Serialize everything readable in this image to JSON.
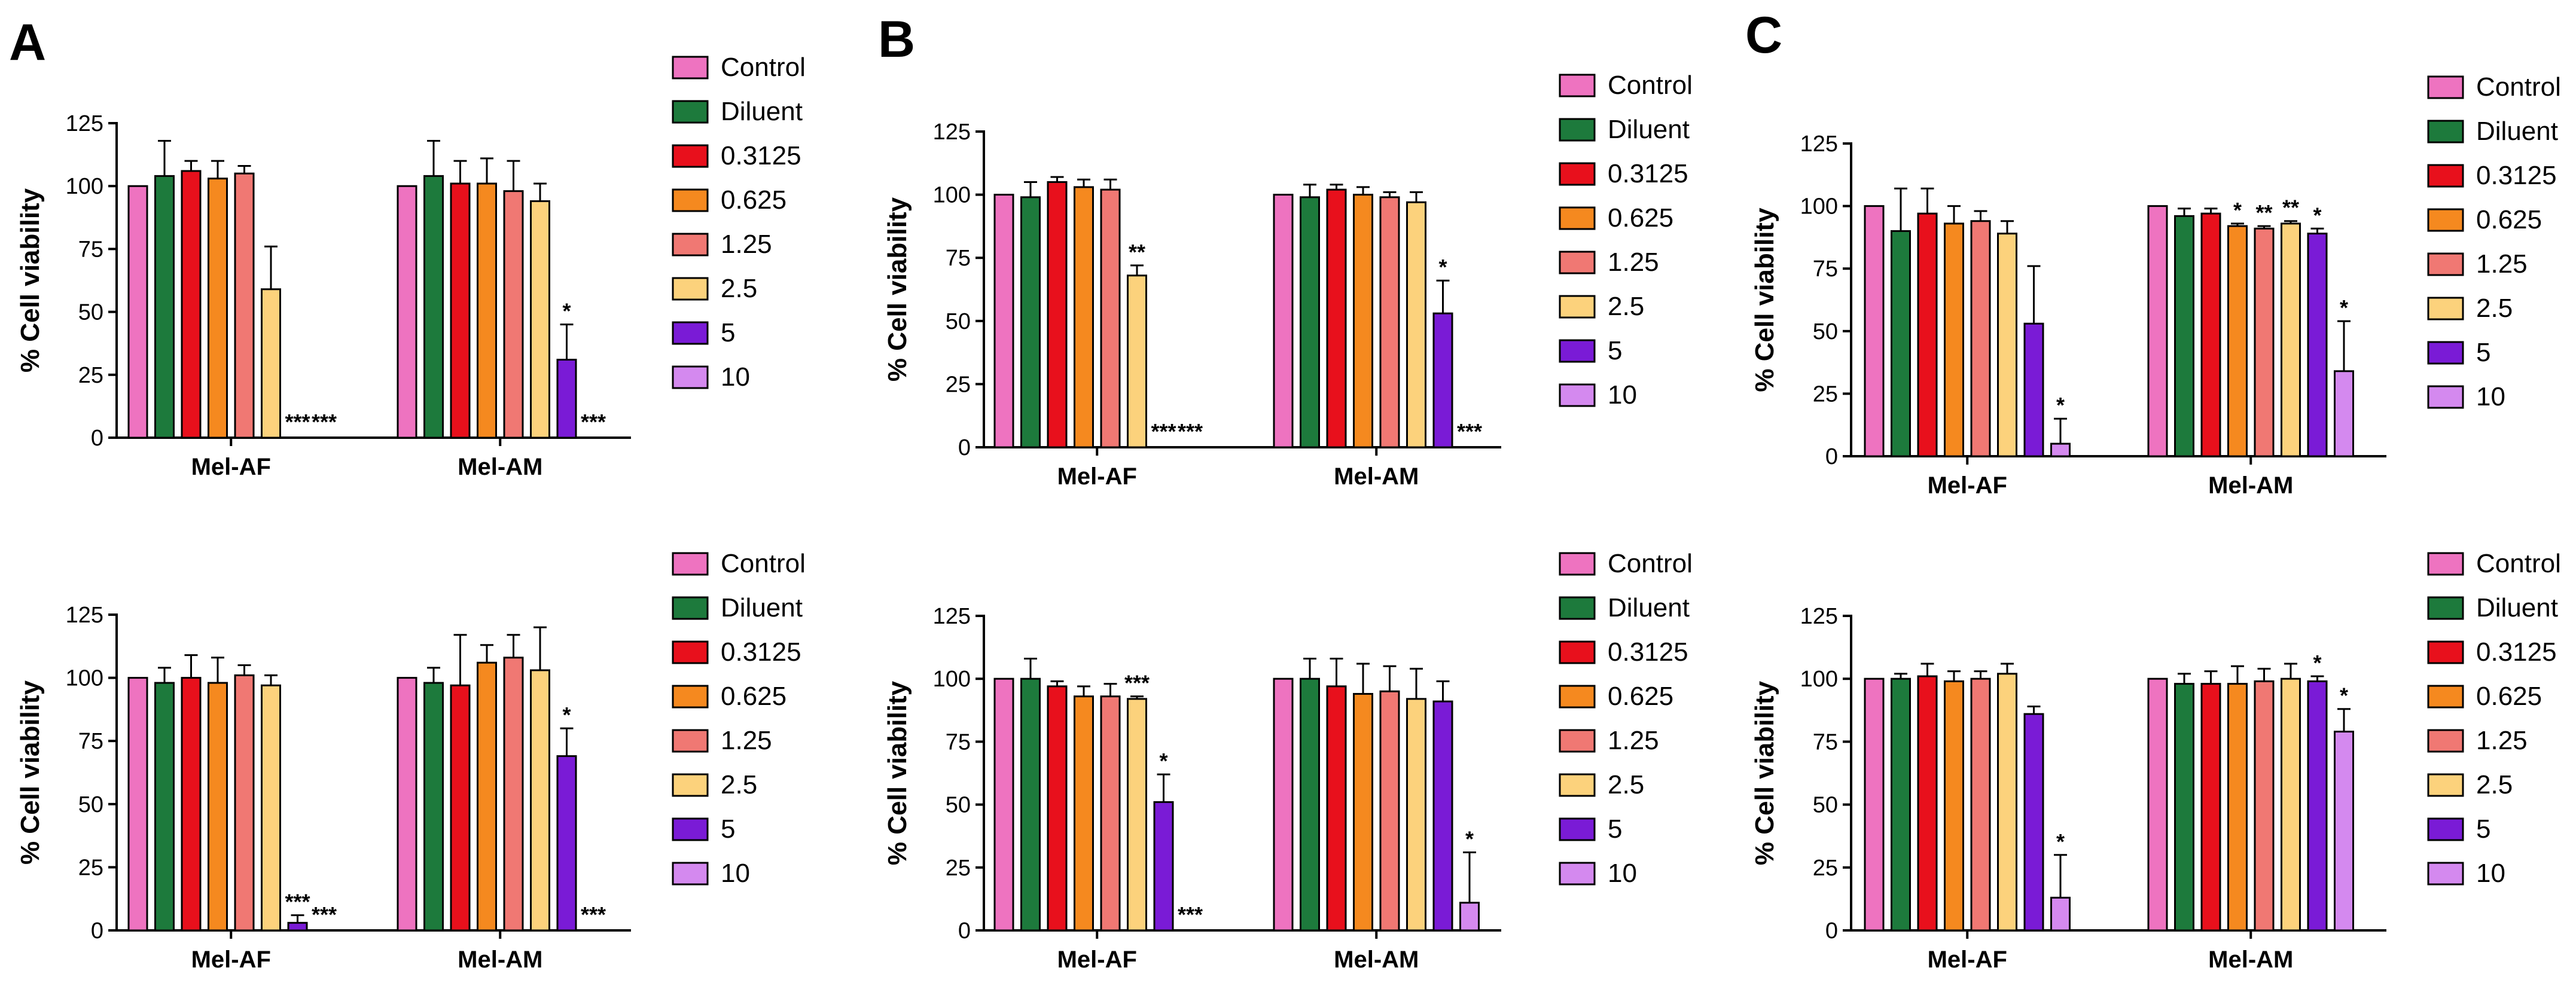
{
  "colors": {
    "Control": "#ee73c0",
    "Diluent": "#1d7a3c",
    "0.3125": "#e8101c",
    "0.625": "#f5891f",
    "1.25": "#f07873",
    "2.5": "#fcd27c",
    "5": "#7a1bd6",
    "10": "#d489ef"
  },
  "chart_data": [
    {
      "panel": "A",
      "type": "bar",
      "ylabel": "% Cell viability",
      "ylim": [
        0,
        125
      ],
      "yticks": [
        0,
        25,
        50,
        75,
        100,
        125
      ],
      "categories": [
        "Mel-AF",
        "Mel-AM"
      ],
      "series": [
        {
          "name": "Control",
          "values": [
            100,
            100
          ],
          "errors": [
            0,
            0
          ],
          "sig": [
            "",
            ""
          ]
        },
        {
          "name": "Diluent",
          "values": [
            104,
            104
          ],
          "errors": [
            14,
            14
          ],
          "sig": [
            "",
            ""
          ]
        },
        {
          "name": "0.3125",
          "values": [
            106,
            101
          ],
          "errors": [
            4,
            9
          ],
          "sig": [
            "",
            ""
          ]
        },
        {
          "name": "0.625",
          "values": [
            103,
            101
          ],
          "errors": [
            7,
            10
          ],
          "sig": [
            "",
            ""
          ]
        },
        {
          "name": "1.25",
          "values": [
            105,
            98
          ],
          "errors": [
            3,
            12
          ],
          "sig": [
            "",
            ""
          ]
        },
        {
          "name": "2.5",
          "values": [
            59,
            94
          ],
          "errors": [
            17,
            7
          ],
          "sig": [
            "",
            ""
          ]
        },
        {
          "name": "5",
          "values": [
            0,
            31
          ],
          "errors": [
            0,
            14
          ],
          "sig": [
            "***",
            "*"
          ]
        },
        {
          "name": "10",
          "values": [
            0,
            0
          ],
          "errors": [
            0,
            0
          ],
          "sig": [
            "***",
            "***"
          ]
        }
      ]
    },
    {
      "panel": "B",
      "type": "bar",
      "ylabel": "% Cell viability",
      "ylim": [
        0,
        125
      ],
      "yticks": [
        0,
        25,
        50,
        75,
        100,
        125
      ],
      "categories": [
        "Mel-AF",
        "Mel-AM"
      ],
      "series": [
        {
          "name": "Control",
          "values": [
            100,
            100
          ],
          "errors": [
            0,
            0
          ],
          "sig": [
            "",
            ""
          ]
        },
        {
          "name": "Diluent",
          "values": [
            99,
            99
          ],
          "errors": [
            6,
            5
          ],
          "sig": [
            "",
            ""
          ]
        },
        {
          "name": "0.3125",
          "values": [
            105,
            102
          ],
          "errors": [
            2,
            2
          ],
          "sig": [
            "",
            ""
          ]
        },
        {
          "name": "0.625",
          "values": [
            103,
            100
          ],
          "errors": [
            3,
            3
          ],
          "sig": [
            "",
            ""
          ]
        },
        {
          "name": "1.25",
          "values": [
            102,
            99
          ],
          "errors": [
            4,
            2
          ],
          "sig": [
            "",
            ""
          ]
        },
        {
          "name": "2.5",
          "values": [
            68,
            97
          ],
          "errors": [
            4,
            4
          ],
          "sig": [
            "**",
            ""
          ]
        },
        {
          "name": "5",
          "values": [
            0,
            53
          ],
          "errors": [
            0,
            13
          ],
          "sig": [
            "***",
            "*"
          ]
        },
        {
          "name": "10",
          "values": [
            0,
            0
          ],
          "errors": [
            0,
            0
          ],
          "sig": [
            "***",
            "***"
          ]
        }
      ]
    },
    {
      "panel": "C",
      "type": "bar",
      "ylabel": "% Cell viability",
      "ylim": [
        0,
        125
      ],
      "yticks": [
        0,
        25,
        50,
        75,
        100,
        125
      ],
      "categories": [
        "Mel-AF",
        "Mel-AM"
      ],
      "series": [
        {
          "name": "Control",
          "values": [
            100,
            100
          ],
          "errors": [
            0,
            0
          ],
          "sig": [
            "",
            ""
          ]
        },
        {
          "name": "Diluent",
          "values": [
            90,
            96
          ],
          "errors": [
            17,
            3
          ],
          "sig": [
            "",
            ""
          ]
        },
        {
          "name": "0.3125",
          "values": [
            97,
            97
          ],
          "errors": [
            10,
            2
          ],
          "sig": [
            "",
            ""
          ]
        },
        {
          "name": "0.625",
          "values": [
            93,
            92
          ],
          "errors": [
            7,
            1
          ],
          "sig": [
            "",
            "*"
          ]
        },
        {
          "name": "1.25",
          "values": [
            94,
            91
          ],
          "errors": [
            4,
            1
          ],
          "sig": [
            "",
            "**"
          ]
        },
        {
          "name": "2.5",
          "values": [
            89,
            93
          ],
          "errors": [
            5,
            1
          ],
          "sig": [
            "",
            "**"
          ]
        },
        {
          "name": "5",
          "values": [
            53,
            89
          ],
          "errors": [
            23,
            2
          ],
          "sig": [
            "",
            "*"
          ]
        },
        {
          "name": "10",
          "values": [
            5,
            34
          ],
          "errors": [
            10,
            20
          ],
          "sig": [
            "*",
            "*"
          ]
        }
      ]
    },
    {
      "panel": "A",
      "type": "bar",
      "ylabel": "% Cell viability",
      "ylim": [
        0,
        125
      ],
      "yticks": [
        0,
        25,
        50,
        75,
        100,
        125
      ],
      "categories": [
        "Mel-AF",
        "Mel-AM"
      ],
      "series": [
        {
          "name": "Control",
          "values": [
            100,
            100
          ],
          "errors": [
            0,
            0
          ],
          "sig": [
            "",
            ""
          ]
        },
        {
          "name": "Diluent",
          "values": [
            98,
            98
          ],
          "errors": [
            6,
            6
          ],
          "sig": [
            "",
            ""
          ]
        },
        {
          "name": "0.3125",
          "values": [
            100,
            97
          ],
          "errors": [
            9,
            20
          ],
          "sig": [
            "",
            ""
          ]
        },
        {
          "name": "0.625",
          "values": [
            98,
            106
          ],
          "errors": [
            10,
            7
          ],
          "sig": [
            "",
            ""
          ]
        },
        {
          "name": "1.25",
          "values": [
            101,
            108
          ],
          "errors": [
            4,
            9
          ],
          "sig": [
            "",
            ""
          ]
        },
        {
          "name": "2.5",
          "values": [
            97,
            103
          ],
          "errors": [
            4,
            17
          ],
          "sig": [
            "",
            ""
          ]
        },
        {
          "name": "5",
          "values": [
            3,
            69
          ],
          "errors": [
            3,
            11
          ],
          "sig": [
            "***",
            "*"
          ]
        },
        {
          "name": "10",
          "values": [
            0,
            0
          ],
          "errors": [
            0,
            0
          ],
          "sig": [
            "***",
            "***"
          ]
        }
      ]
    },
    {
      "panel": "B",
      "type": "bar",
      "ylabel": "% Cell viability",
      "ylim": [
        0,
        125
      ],
      "yticks": [
        0,
        25,
        50,
        75,
        100,
        125
      ],
      "categories": [
        "Mel-AF",
        "Mel-AM"
      ],
      "series": [
        {
          "name": "Control",
          "values": [
            100,
            100
          ],
          "errors": [
            0,
            0
          ],
          "sig": [
            "",
            ""
          ]
        },
        {
          "name": "Diluent",
          "values": [
            100,
            100
          ],
          "errors": [
            8,
            8
          ],
          "sig": [
            "",
            ""
          ]
        },
        {
          "name": "0.3125",
          "values": [
            97,
            97
          ],
          "errors": [
            2,
            11
          ],
          "sig": [
            "",
            ""
          ]
        },
        {
          "name": "0.625",
          "values": [
            93,
            94
          ],
          "errors": [
            4,
            12
          ],
          "sig": [
            "",
            ""
          ]
        },
        {
          "name": "1.25",
          "values": [
            93,
            95
          ],
          "errors": [
            5,
            10
          ],
          "sig": [
            "",
            ""
          ]
        },
        {
          "name": "2.5",
          "values": [
            92,
            92
          ],
          "errors": [
            1,
            12
          ],
          "sig": [
            "***",
            ""
          ]
        },
        {
          "name": "5",
          "values": [
            51,
            91
          ],
          "errors": [
            11,
            8
          ],
          "sig": [
            "*",
            ""
          ]
        },
        {
          "name": "10",
          "values": [
            0,
            11
          ],
          "errors": [
            0,
            20
          ],
          "sig": [
            "***",
            "*"
          ]
        }
      ]
    },
    {
      "panel": "C",
      "type": "bar",
      "ylabel": "% Cell viability",
      "ylim": [
        0,
        125
      ],
      "yticks": [
        0,
        25,
        50,
        75,
        100,
        125
      ],
      "categories": [
        "Mel-AF",
        "Mel-AM"
      ],
      "series": [
        {
          "name": "Control",
          "values": [
            100,
            100
          ],
          "errors": [
            0,
            0
          ],
          "sig": [
            "",
            ""
          ]
        },
        {
          "name": "Diluent",
          "values": [
            100,
            98
          ],
          "errors": [
            2,
            4
          ],
          "sig": [
            "",
            ""
          ]
        },
        {
          "name": "0.3125",
          "values": [
            101,
            98
          ],
          "errors": [
            5,
            5
          ],
          "sig": [
            "",
            ""
          ]
        },
        {
          "name": "0.625",
          "values": [
            99,
            98
          ],
          "errors": [
            4,
            7
          ],
          "sig": [
            "",
            ""
          ]
        },
        {
          "name": "1.25",
          "values": [
            100,
            99
          ],
          "errors": [
            3,
            5
          ],
          "sig": [
            "",
            ""
          ]
        },
        {
          "name": "2.5",
          "values": [
            102,
            100
          ],
          "errors": [
            4,
            6
          ],
          "sig": [
            "",
            ""
          ]
        },
        {
          "name": "5",
          "values": [
            86,
            99
          ],
          "errors": [
            3,
            2
          ],
          "sig": [
            "",
            "*"
          ]
        },
        {
          "name": "10",
          "values": [
            13,
            79
          ],
          "errors": [
            17,
            9
          ],
          "sig": [
            "*",
            "*"
          ]
        }
      ]
    }
  ]
}
